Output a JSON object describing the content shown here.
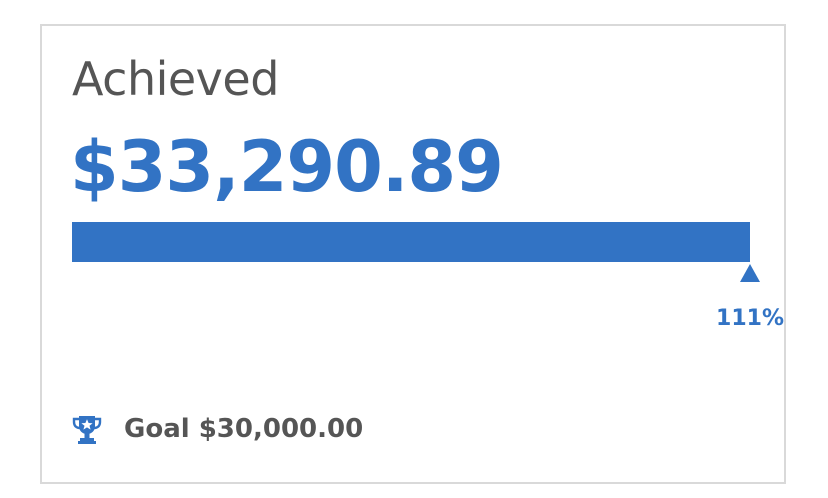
{
  "card": {
    "title": "Achieved",
    "amount": "$33,290.89",
    "progress_fraction": 1.11,
    "percent_label": "111%",
    "goal_text": "Goal $30,000.00",
    "goal_icon": "trophy-icon"
  },
  "colors": {
    "accent": "#3273c4",
    "text_muted": "#555555",
    "border": "#d9d9d9"
  }
}
